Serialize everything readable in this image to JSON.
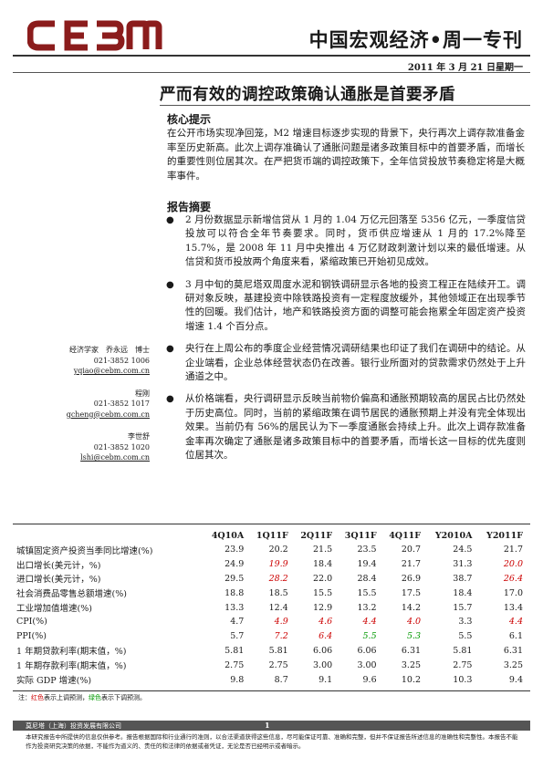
{
  "header": {
    "logo_text": "CEBM",
    "brand": "中国宏观经济•周一专刊",
    "date": "2011 年 3 月 21 日星期一"
  },
  "headline": "严而有效的调控政策确认通胀是首要矛盾",
  "core": {
    "title": "核心提示",
    "text": "在公开市场实现净回笼，M2 增速目标逐步实现的背景下，央行再次上调存款准备金率至历史新高。此次上调存准确认了通胀问题是诸多政策目标中的首要矛盾，而增长的重要性则位居其次。在严把货币端的调控政策下，全年信贷投放节奏稳定将是大概率事件。"
  },
  "summary": {
    "title": "报告摘要",
    "bullets": [
      "2 月份数据显示新增信贷从 1 月的 1.04 万亿元回落至 5356 亿元，一季度信贷投放可以符合全年节奏要求。同时，货币供应增速从 1 月的 17.2%降至 15.7%，是 2008 年 11 月中央推出 4 万亿财政刺激计划以来的最低增速。从信贷和货币投放两个角度来看，紧缩政策已开始初见成效。",
      "3 月中旬的莫尼塔双周度水泥和钢铁调研显示各地的投资工程正在陆续开工。调研对象反映，基建投资中除铁路投资有一定程度放缓外，其他领域正在出现季节性的回暖。我们估计，地产和铁路投资方面的调整可能会拖累全年固定资产投资增速 1.4 个百分点。",
      "央行在上周公布的季度企业经营情况调研结果也印证了我们在调研中的结论。从企业端看，企业总体经营状态仍在改善。银行业所面对的贷款需求仍然处于上升通道之中。",
      "从价格端看，央行调研显示反映当前物价偏高和通胀预期较高的居民占比仍然处于历史高位。同时，当前的紧缩政策在调节居民的通胀预期上并没有完全体现出效果。当前仍有 56%的居民认为下一季度通胀会持续上升。此次上调存款准备金率再次确定了通胀是诸多政策目标中的首要矛盾，而增长这一目标的优先度则位居其次。"
    ]
  },
  "analysts": [
    {
      "name": "经济学家　乔永远　博士",
      "phone": "021-3852 1006",
      "email": "yqiao@cebm.com.cn"
    },
    {
      "name": "程刚",
      "phone": "021-3852 1017",
      "email": "gcheng@cebm.com.cn"
    },
    {
      "name": "李世舒",
      "phone": "021-3852 1020",
      "email": "lshi@cebm.com.cn"
    }
  ],
  "table": {
    "columns": [
      "4Q10A",
      "1Q11F",
      "2Q11F",
      "3Q11F",
      "4Q11F",
      "Y2010A",
      "Y2011F"
    ],
    "rows": [
      {
        "label": "城镇固定资产投资当季同比增速(%)",
        "values": [
          "23.9",
          "20.2",
          "21.5",
          "23.5",
          "20.7",
          "24.5",
          "21.7"
        ],
        "styles": [
          "",
          "",
          "",
          "",
          "",
          "",
          ""
        ]
      },
      {
        "label": "出口增长(美元计，%)",
        "values": [
          "24.9",
          "19.9",
          "18.4",
          "19.4",
          "21.7",
          "31.3",
          "20.0"
        ],
        "styles": [
          "",
          "red",
          "",
          "",
          "",
          "",
          "red"
        ]
      },
      {
        "label": "进口增长(美元计，%)",
        "values": [
          "29.5",
          "28.2",
          "22.0",
          "28.4",
          "26.9",
          "38.7",
          "26.4"
        ],
        "styles": [
          "",
          "red",
          "",
          "",
          "",
          "",
          "red"
        ]
      },
      {
        "label": "社会消费品零售总额增速(%)",
        "values": [
          "18.8",
          "18.5",
          "15.5",
          "15.5",
          "17.5",
          "18.4",
          "17.0"
        ],
        "styles": [
          "",
          "",
          "",
          "",
          "",
          "",
          ""
        ]
      },
      {
        "label": "工业增加值增速(%)",
        "values": [
          "13.3",
          "12.4",
          "12.9",
          "13.2",
          "14.2",
          "15.7",
          "13.4"
        ],
        "styles": [
          "",
          "",
          "",
          "",
          "",
          "",
          ""
        ]
      },
      {
        "label": "CPI(%)",
        "values": [
          "4.7",
          "4.9",
          "4.6",
          "4.4",
          "4.0",
          "3.3",
          "4.4"
        ],
        "styles": [
          "",
          "red",
          "red",
          "red",
          "red",
          "",
          "red"
        ]
      },
      {
        "label": "PPI(%)",
        "values": [
          "5.7",
          "7.2",
          "6.4",
          "5.5",
          "5.3",
          "5.5",
          "6.1"
        ],
        "styles": [
          "",
          "red",
          "red",
          "green",
          "green",
          "",
          ""
        ]
      },
      {
        "label": "1 年期贷款利率(期末值，%)",
        "values": [
          "5.81",
          "5.81",
          "6.06",
          "6.06",
          "6.31",
          "5.81",
          "6.31"
        ],
        "styles": [
          "",
          "",
          "",
          "",
          "",
          "",
          ""
        ]
      },
      {
        "label": "1 年期存款利率(期末值，%)",
        "values": [
          "2.75",
          "2.75",
          "3.00",
          "3.00",
          "3.25",
          "2.75",
          "3.25"
        ],
        "styles": [
          "",
          "",
          "",
          "",
          "",
          "",
          ""
        ]
      },
      {
        "label": "实际 GDP 增速(%)",
        "values": [
          "9.8",
          "8.7",
          "9.1",
          "9.6",
          "10.2",
          "10.3",
          "9.4"
        ],
        "styles": [
          "",
          "",
          "",
          "",
          "",
          "",
          ""
        ]
      }
    ]
  },
  "note": {
    "prefix": "注：",
    "red_label": "红色",
    "middle": "表示上调预测，",
    "green_label": "绿色",
    "suffix": "表示下调预测。"
  },
  "footer": {
    "company": "莫尼塔（上海）投资发展有限公司",
    "page": "1",
    "disclaimer": "本研究报告中所提供的信息仅供参考。报告根据国际和行业通行的准则，以合法渠道获得这些信息，尽可能保证可靠、准确和完整，但并不保证报告所述信息的准确性和完整性。本报告不能作为投资研究决策的依据，不能作为道义的、责任的和法律的依据或者凭证，无论是否已经明示或者暗示。"
  },
  "colors": {
    "accent": "#8b1c1c",
    "revised_up": "#cc0000",
    "revised_down": "#009900"
  }
}
